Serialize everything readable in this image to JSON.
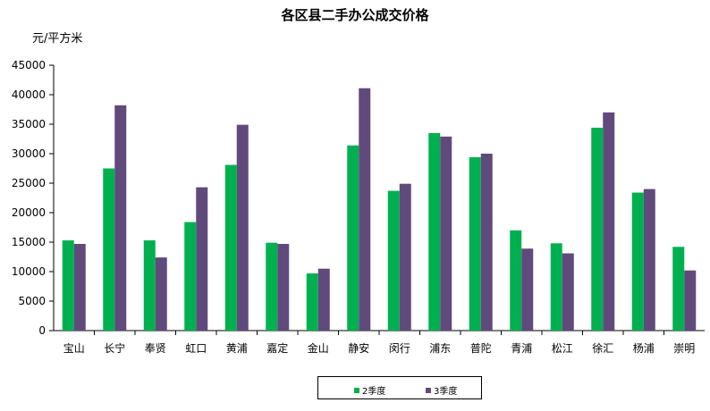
{
  "chart_data": {
    "type": "bar",
    "title": "各区县二手办公成交价格",
    "ylabel": "元/平方米",
    "xlabel": "",
    "ylim": [
      0,
      45000
    ],
    "yticks": [
      "0",
      "5000",
      "10000",
      "15000",
      "20000",
      "25000",
      "30000",
      "35000",
      "40000",
      "45000"
    ],
    "grid": false,
    "legend_position": "bottom",
    "categories": [
      "宝山",
      "长宁",
      "奉贤",
      "虹口",
      "黄浦",
      "嘉定",
      "金山",
      "静安",
      "闵行",
      "浦东",
      "普陀",
      "青浦",
      "松江",
      "徐汇",
      "杨浦",
      "崇明"
    ],
    "series": [
      {
        "name": "2季度",
        "color": "#00b050",
        "values": [
          15300,
          27500,
          15300,
          18400,
          28100,
          14900,
          9700,
          31400,
          23700,
          33500,
          29400,
          17000,
          14800,
          34400,
          23400,
          14200
        ]
      },
      {
        "name": "3季度",
        "color": "#604a7b",
        "values": [
          14700,
          38200,
          12400,
          24300,
          34900,
          14700,
          10500,
          41100,
          24900,
          32900,
          30000,
          13900,
          13100,
          37000,
          24000,
          10200
        ]
      }
    ]
  }
}
